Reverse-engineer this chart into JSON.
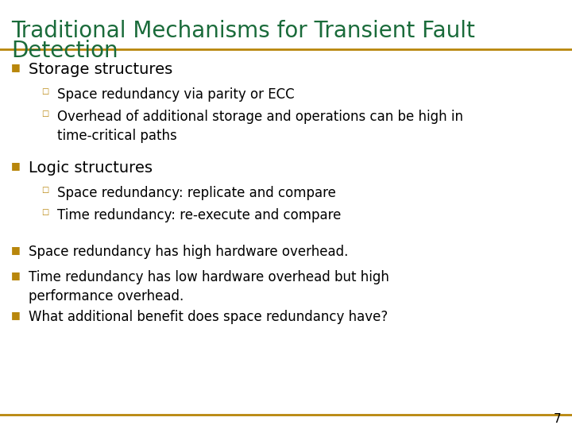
{
  "title_line1": "Traditional Mechanisms for Transient Fault",
  "title_line2": "Detection",
  "title_color": "#1a6b3a",
  "title_fontsize": 20,
  "separator_color": "#b8860b",
  "background_color": "#ffffff",
  "bullet_color": "#b8860b",
  "text_color": "#000000",
  "page_number": "7",
  "content": [
    {
      "type": "bullet1",
      "marker": "■",
      "text": "Storage structures",
      "fontsize": 14
    },
    {
      "type": "bullet2",
      "marker": "□",
      "text": "Space redundancy via parity or ECC",
      "fontsize": 12
    },
    {
      "type": "bullet2",
      "marker": "□",
      "text": "Overhead of additional storage and operations can be high in\ntime-critical paths",
      "fontsize": 12
    },
    {
      "type": "spacer"
    },
    {
      "type": "bullet1",
      "marker": "■",
      "text": "Logic structures",
      "fontsize": 14
    },
    {
      "type": "bullet2",
      "marker": "□",
      "text": "Space redundancy: replicate and compare",
      "fontsize": 12
    },
    {
      "type": "bullet2",
      "marker": "□",
      "text": "Time redundancy: re-execute and compare",
      "fontsize": 12
    },
    {
      "type": "spacer"
    },
    {
      "type": "bullet1",
      "marker": "■",
      "text": "Space redundancy has high hardware overhead.",
      "fontsize": 12
    },
    {
      "type": "bullet1",
      "marker": "■",
      "text": "Time redundancy has low hardware overhead but high\nperformance overhead.",
      "fontsize": 12
    },
    {
      "type": "bullet1",
      "marker": "■",
      "text": "What additional benefit does space redundancy have?",
      "fontsize": 12
    }
  ]
}
